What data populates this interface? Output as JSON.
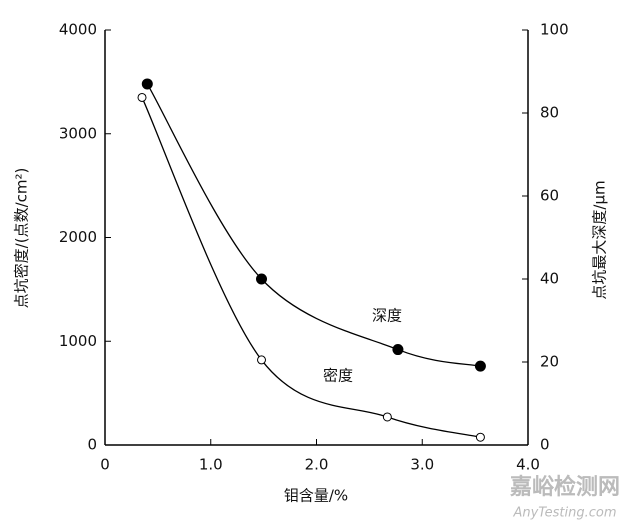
{
  "chart_data": {
    "type": "line",
    "x_label": "钼含量/%",
    "y_label": "点坑密度/(点数/cm²)",
    "y2_label": "点坑最大深度/μm",
    "xlim": [
      0,
      4
    ],
    "xticks": [
      0,
      {
        "value": 1,
        "label": "1.0"
      },
      {
        "value": 2,
        "label": "2.0"
      },
      {
        "value": 3,
        "label": "3.0"
      },
      {
        "value": 4,
        "label": "4.0"
      }
    ],
    "ylim": [
      0,
      4000
    ],
    "yticks": [
      0,
      1000,
      2000,
      3000,
      4000
    ],
    "y2lim": [
      0,
      100
    ],
    "y2ticks": [
      0,
      20,
      40,
      60,
      80,
      100
    ],
    "series": [
      {
        "name": "深度",
        "axis": "y2",
        "color": "#000000",
        "marker": "filled",
        "x": [
          0.4,
          1.48,
          2.77,
          3.55
        ],
        "values": [
          87,
          40,
          23,
          19
        ]
      },
      {
        "name": "密度",
        "color": "#000000",
        "marker": "open",
        "x": [
          0.35,
          1.48,
          2.67,
          3.55
        ],
        "values": [
          3350,
          820,
          270,
          75
        ]
      }
    ],
    "watermark": [
      "嘉峪检测网",
      "AnyTesting.com"
    ]
  }
}
